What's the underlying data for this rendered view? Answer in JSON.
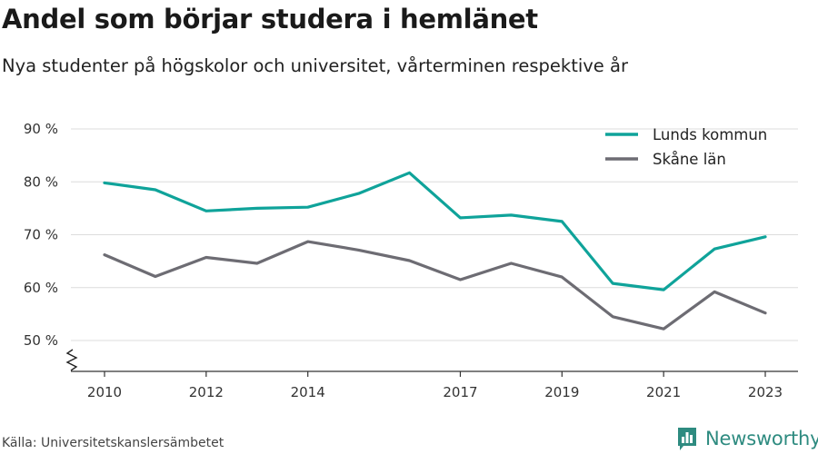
{
  "header": {
    "title": "Andel som börjar studera i hemlänet",
    "subtitle": "Nya studenter på högskolor och universitet, vårterminen respektive år"
  },
  "footer": {
    "source": "Källa: Universitetskanslersämbetet",
    "brand": "Newsworthy",
    "brand_color": "#2e8b80"
  },
  "chart_data": {
    "type": "line",
    "title": "Andel som börjar studera i hemlänet",
    "subtitle": "Nya studenter på högskolor och universitet, vårterminen respektive år",
    "xlabel": "",
    "ylabel": "",
    "x": [
      2010,
      2011,
      2012,
      2013,
      2014,
      2015,
      2016,
      2017,
      2018,
      2019,
      2020,
      2021,
      2022,
      2023
    ],
    "x_ticks": [
      2010,
      2012,
      2014,
      2017,
      2019,
      2021,
      2023
    ],
    "y_ticks": [
      50,
      60,
      70,
      80,
      90
    ],
    "y_tick_labels": [
      "50 %",
      "60 %",
      "70 %",
      "80 %",
      "90 %"
    ],
    "ylim": [
      50,
      90
    ],
    "y_axis_break": true,
    "grid": true,
    "legend": "top-right",
    "series": [
      {
        "name": "Lunds kommun",
        "color": "#0fa39a",
        "values": [
          79.8,
          78.5,
          74.5,
          75.0,
          75.2,
          77.8,
          81.7,
          73.2,
          73.7,
          72.5,
          60.8,
          59.6,
          67.3,
          69.6
        ]
      },
      {
        "name": "Skåne län",
        "color": "#6d6c73",
        "values": [
          66.2,
          62.1,
          65.7,
          64.6,
          68.7,
          67.1,
          65.1,
          61.5,
          64.6,
          62.0,
          54.5,
          52.2,
          59.2,
          55.2
        ]
      }
    ]
  }
}
